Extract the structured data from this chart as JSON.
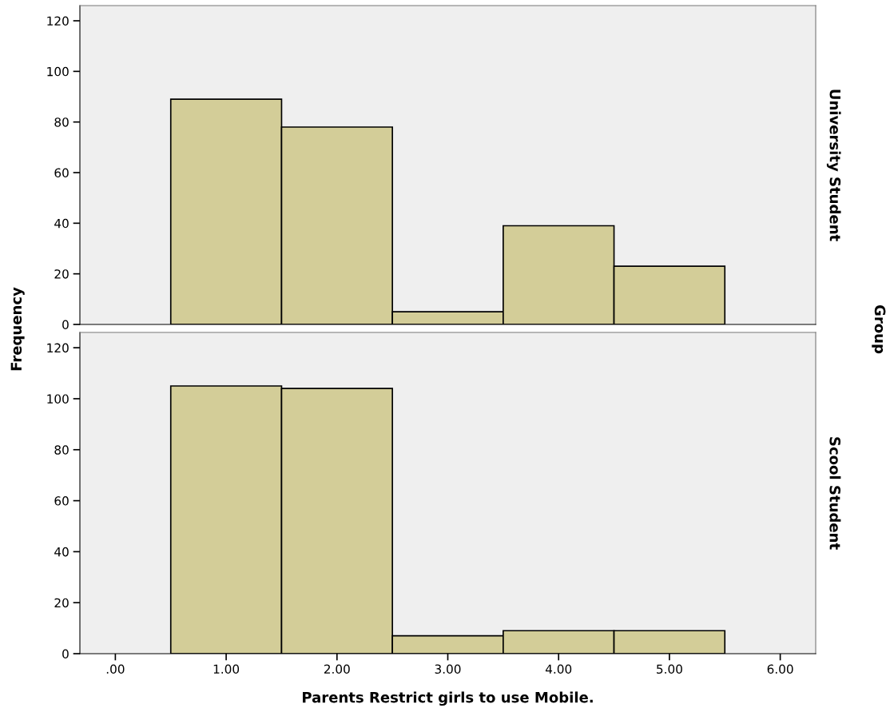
{
  "chart_data": [
    {
      "type": "histogram",
      "y2label": "University Student",
      "ylabel": "Frequency",
      "annotations": [
        "Group"
      ],
      "bins": [
        0.5,
        1.5,
        2.5,
        3.5,
        4.5,
        5.5
      ],
      "values": [
        89,
        78,
        5,
        39,
        23
      ],
      "color": "#d3cd98",
      "xlim": [
        -0.32,
        6.32
      ],
      "ylim": [
        0,
        126
      ],
      "yticks": [
        0,
        20,
        40,
        60,
        80,
        100,
        120
      ],
      "grid": false,
      "tick_labels": "y"
    },
    {
      "type": "histogram",
      "y2label": "Scool Student",
      "xlabel": "Parents Restrict girls to use Mobile.",
      "bins": [
        0.5,
        1.5,
        2.5,
        3.5,
        4.5,
        5.5
      ],
      "values": [
        105,
        104,
        7,
        9,
        9
      ],
      "color": "#d3cd98",
      "xlim": [
        -0.32,
        6.32
      ],
      "ylim": [
        0,
        126
      ],
      "yticks": [
        0,
        20,
        40,
        60,
        80,
        100,
        120
      ],
      "xticks": [
        {
          "value": 0,
          "label": ".00"
        },
        {
          "value": 1,
          "label": "1.00"
        },
        {
          "value": 2,
          "label": "2.00"
        },
        {
          "value": 3,
          "label": "3.00"
        },
        {
          "value": 4,
          "label": "4.00"
        },
        {
          "value": 5,
          "label": "5.00"
        },
        {
          "value": 6,
          "label": "6.00"
        }
      ],
      "grid": false
    }
  ]
}
